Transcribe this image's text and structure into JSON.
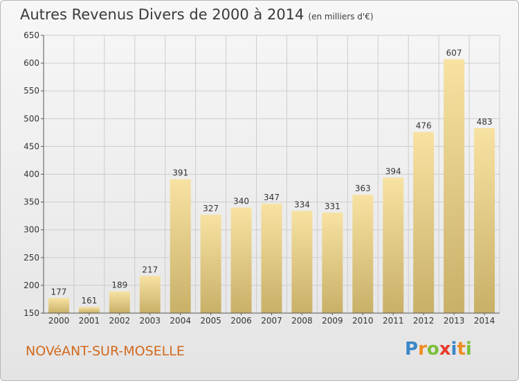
{
  "header": {
    "title": "Autres Revenus Divers de 2000 à 2014",
    "subtitle": "(en milliers d'€)"
  },
  "footer": {
    "commune": "NOVéANT-SUR-MOSELLE",
    "logo_letters": [
      "P",
      "r",
      "o",
      "x",
      "i",
      "t",
      "i"
    ]
  },
  "colors": {
    "bar_light": "#f7e2a2",
    "bar_dark": "#c8b068",
    "grid": "#cccccc",
    "logo": [
      "#3a86c8",
      "#f08c1e",
      "#7bbf3a",
      "#e83a2a",
      "#3a86c8",
      "#f08c1e",
      "#7bbf3a"
    ]
  },
  "chart_data": {
    "type": "bar",
    "title": "Autres Revenus Divers de 2000 à 2014",
    "subtitle": "(en milliers d'€)",
    "categories": [
      "2000",
      "2001",
      "2002",
      "2003",
      "2004",
      "2005",
      "2006",
      "2007",
      "2008",
      "2009",
      "2010",
      "2011",
      "2012",
      "2013",
      "2014"
    ],
    "values": [
      177,
      161,
      189,
      217,
      391,
      327,
      340,
      347,
      334,
      331,
      363,
      394,
      476,
      607,
      483
    ],
    "ylim": [
      150,
      650
    ],
    "yticks": [
      150,
      200,
      250,
      300,
      350,
      400,
      450,
      500,
      550,
      600,
      650
    ],
    "grid": true,
    "data_labels": true
  }
}
